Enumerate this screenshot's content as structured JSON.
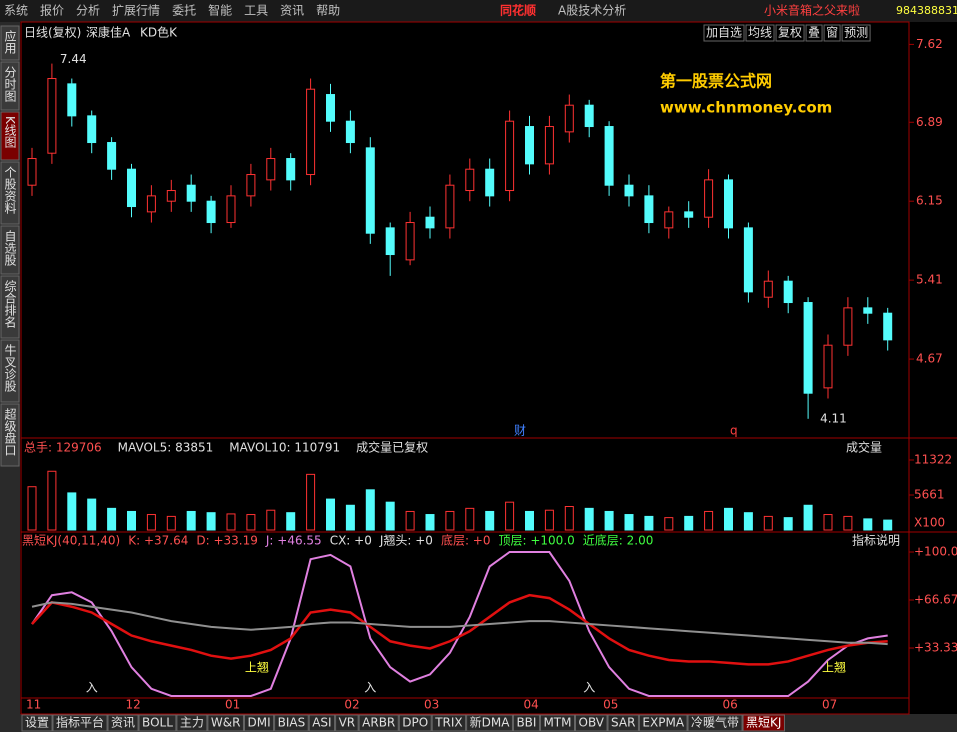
{
  "menu": [
    "系统",
    "报价",
    "分析",
    "扩展行情",
    "委托",
    "智能",
    "工具",
    "资讯",
    "帮助"
  ],
  "brand": "同花顺",
  "brand_sub": "A股技术分析",
  "promo": "小米音箱之父来啦",
  "account": "984388831",
  "header": {
    "period": "日线(复权)",
    "stock": "深康佳A",
    "style": "KD色K"
  },
  "toolbar": [
    "加自选",
    "均线",
    "复权",
    "叠",
    "窗",
    "预测"
  ],
  "side_tabs": [
    "应用",
    "分时图",
    "K线图",
    "个股资料",
    "自选股",
    "综合排名",
    "牛叉诊股",
    "超级盘口"
  ],
  "watermark": [
    "第一股票公式网",
    "www.chnmoney.com"
  ],
  "markers": [
    "财",
    "q"
  ],
  "chart_data": {
    "type": "candlestick",
    "categories": [
      "11",
      null,
      null,
      null,
      null,
      "12",
      null,
      null,
      null,
      null,
      "01",
      null,
      null,
      null,
      null,
      null,
      "02",
      null,
      null,
      null,
      "03",
      null,
      null,
      null,
      null,
      "04",
      null,
      null,
      null,
      "05",
      null,
      null,
      null,
      null,
      null,
      "06",
      null,
      null,
      null,
      null,
      "07",
      null,
      null,
      null
    ],
    "open": [
      6.3,
      6.6,
      7.25,
      6.95,
      6.7,
      6.45,
      6.05,
      6.15,
      6.3,
      6.15,
      5.95,
      6.2,
      6.35,
      6.55,
      6.4,
      7.15,
      6.9,
      6.65,
      5.9,
      5.6,
      6.0,
      5.9,
      6.25,
      6.45,
      6.25,
      6.85,
      6.5,
      6.8,
      7.05,
      6.85,
      6.3,
      6.2,
      5.9,
      6.05,
      6.0,
      6.35,
      5.9,
      5.25,
      5.4,
      5.2,
      4.4,
      4.8,
      5.15,
      5.1
    ],
    "high": [
      6.65,
      7.44,
      7.3,
      7.0,
      6.75,
      6.5,
      6.3,
      6.35,
      6.4,
      6.2,
      6.3,
      6.5,
      6.65,
      6.6,
      7.3,
      7.25,
      7.0,
      6.75,
      5.95,
      6.05,
      6.1,
      6.4,
      6.55,
      6.55,
      7.0,
      6.95,
      6.95,
      7.15,
      7.1,
      6.9,
      6.4,
      6.3,
      6.1,
      6.15,
      6.45,
      6.4,
      5.95,
      5.5,
      5.45,
      5.25,
      4.9,
      5.25,
      5.25,
      5.15
    ],
    "low": [
      6.2,
      6.5,
      6.85,
      6.6,
      6.35,
      6.0,
      5.95,
      6.05,
      6.05,
      5.85,
      5.9,
      6.1,
      6.25,
      6.25,
      6.3,
      6.8,
      6.6,
      5.75,
      5.45,
      5.55,
      5.8,
      5.8,
      6.15,
      6.1,
      6.15,
      6.4,
      6.4,
      6.7,
      6.75,
      6.2,
      6.1,
      5.85,
      5.8,
      5.9,
      5.9,
      5.8,
      5.2,
      5.15,
      5.1,
      4.11,
      4.3,
      4.7,
      5.0,
      4.75
    ],
    "close": [
      6.55,
      7.3,
      6.95,
      6.7,
      6.45,
      6.1,
      6.2,
      6.25,
      6.15,
      5.95,
      6.2,
      6.4,
      6.55,
      6.35,
      7.2,
      6.9,
      6.7,
      5.85,
      5.65,
      5.95,
      5.9,
      6.3,
      6.45,
      6.2,
      6.9,
      6.5,
      6.85,
      7.05,
      6.85,
      6.3,
      6.2,
      5.95,
      6.05,
      6.0,
      6.35,
      5.9,
      5.3,
      5.4,
      5.2,
      4.35,
      4.8,
      5.15,
      5.1,
      4.85
    ],
    "up_color": "#ff3232",
    "down_color": "#54fcfc",
    "ylim": [
      3.93,
      7.83
    ],
    "yticks": [
      7.62,
      6.89,
      6.15,
      5.41,
      4.67
    ],
    "annotations": [
      "7.44",
      "4.11"
    ],
    "volume": {
      "labels": [
        "总手: 129706",
        "MAVOL5: 83851",
        "MAVOL10: 110791",
        "成交量已复权"
      ],
      "selector": "成交量",
      "unit": "X100",
      "values": [
        7000,
        9500,
        6000,
        5000,
        3500,
        3000,
        2500,
        2200,
        3000,
        2800,
        2600,
        2500,
        3200,
        2800,
        9000,
        5000,
        4000,
        6500,
        4500,
        3000,
        2500,
        3000,
        3500,
        3000,
        4500,
        3000,
        3200,
        3800,
        3500,
        3000,
        2500,
        2200,
        2000,
        2200,
        3000,
        3500,
        2800,
        2200,
        2000,
        4000,
        2500,
        2200,
        1800,
        1600
      ],
      "ylim": [
        0,
        14557
      ],
      "yticks": [
        11322,
        5661
      ]
    },
    "indicator": {
      "labels": [
        "黑短KJ(40,11,40)",
        "K: +37.64",
        "D: +33.19",
        "J: +46.55",
        "CX: +0",
        "J翘头: +0",
        "底层: +0",
        "顶层: +100.0",
        "近底层: 2.00"
      ],
      "help": "指标说明",
      "ylim": [
        0,
        100
      ],
      "yticks": [
        {
          "value": 100,
          "label": "+100.0"
        },
        {
          "value": 66.67,
          "label": "+66.67"
        },
        {
          "value": 33.33,
          "label": "+33.33"
        }
      ],
      "signals": [
        "入",
        "入",
        "入",
        "上翘",
        "上翘"
      ],
      "series": [
        {
          "color": "#e080e0",
          "values": [
            50,
            70,
            72,
            65,
            45,
            20,
            5,
            0,
            0,
            0,
            0,
            0,
            5,
            40,
            95,
            98,
            90,
            40,
            20,
            10,
            15,
            30,
            55,
            90,
            100,
            100,
            100,
            80,
            45,
            20,
            5,
            0,
            0,
            0,
            0,
            0,
            0,
            0,
            0,
            10,
            25,
            35,
            40,
            42
          ]
        },
        {
          "color": "#e01010",
          "values": [
            50,
            65,
            62,
            58,
            50,
            42,
            38,
            35,
            32,
            28,
            26,
            28,
            32,
            40,
            58,
            60,
            58,
            48,
            38,
            35,
            33,
            38,
            45,
            55,
            65,
            70,
            68,
            60,
            50,
            40,
            32,
            28,
            25,
            24,
            24,
            23,
            22,
            22,
            24,
            28,
            32,
            35,
            37,
            38
          ]
        },
        {
          "color": "#909090",
          "values": [
            62,
            65,
            64,
            62,
            60,
            58,
            55,
            52,
            50,
            48,
            47,
            46,
            47,
            48,
            50,
            51,
            51,
            50,
            49,
            48,
            48,
            48,
            49,
            50,
            51,
            52,
            52,
            51,
            50,
            49,
            48,
            47,
            46,
            45,
            44,
            43,
            42,
            41,
            40,
            39,
            38,
            37,
            37,
            36
          ]
        }
      ]
    }
  },
  "bottom_tabs": [
    "设置",
    "指标平台",
    "资讯",
    "BOLL",
    "主力",
    "W&R",
    "DMI",
    "BIAS",
    "ASI",
    "VR",
    "ARBR",
    "DPO",
    "TRIX",
    "新DMA",
    "BBI",
    "MTM",
    "OBV",
    "SAR",
    "EXPMA",
    "冷暖气带",
    "黑短KJ"
  ]
}
